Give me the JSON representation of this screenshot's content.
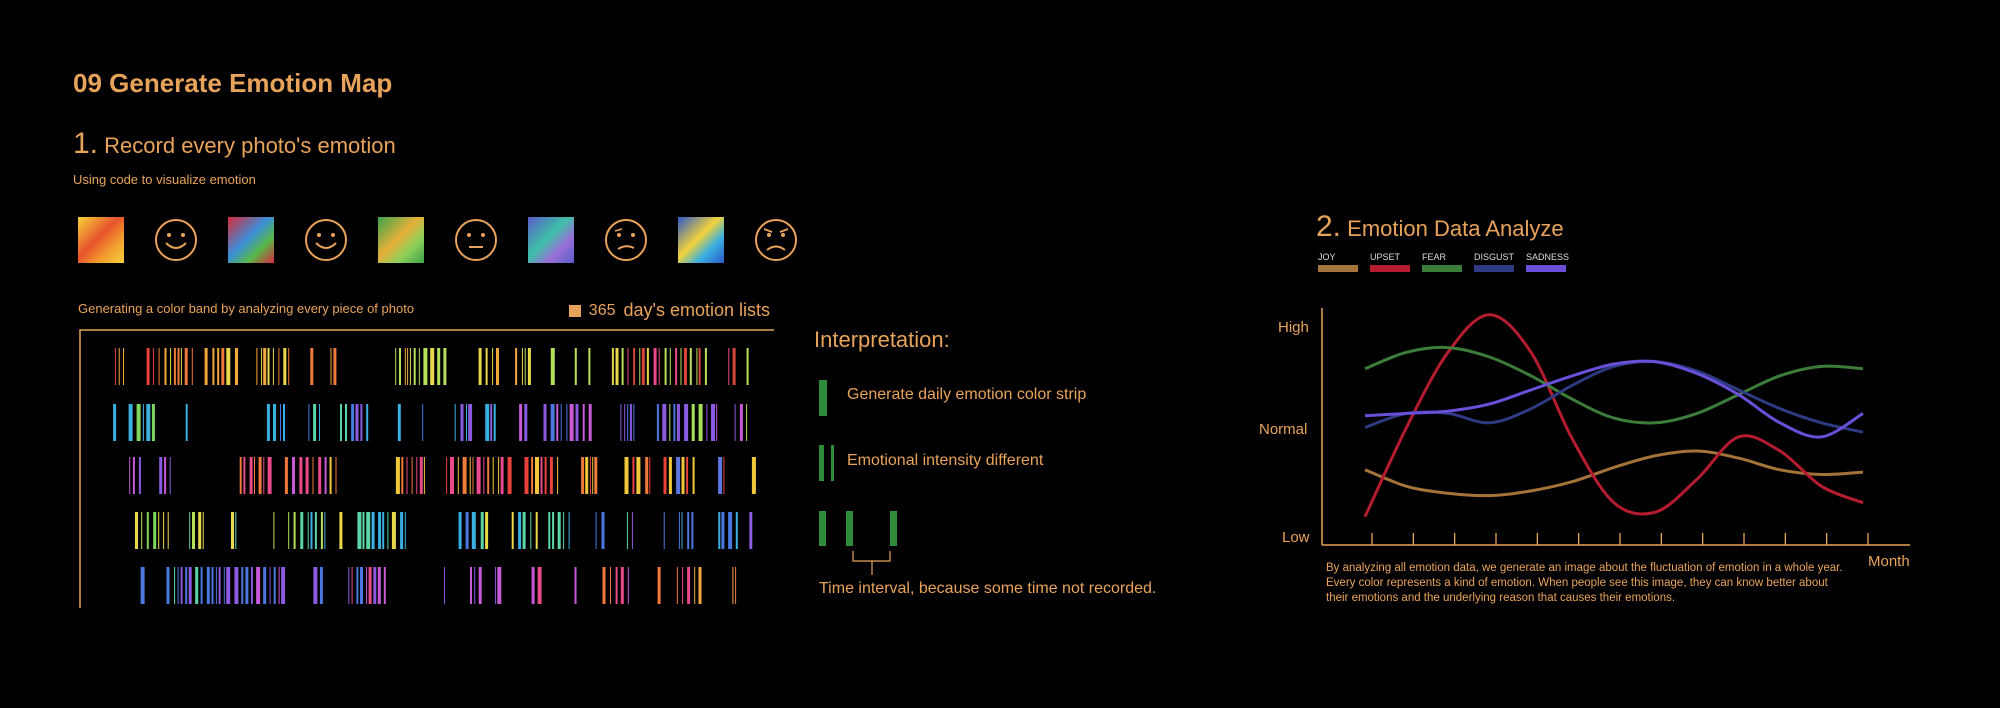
{
  "title": "09 Generate Emotion Map",
  "section1": {
    "number": "1.",
    "heading": "Record every photo's emotion",
    "subtitle": "Using code to visualize emotion",
    "icons": [
      {
        "kind": "photo",
        "name": "photo-joy",
        "colors": [
          "#f7d23a",
          "#e8532b",
          "#f29a2e"
        ]
      },
      {
        "kind": "face",
        "name": "smile-face-icon",
        "mood": "smile"
      },
      {
        "kind": "photo",
        "name": "photo-upset",
        "colors": [
          "#d9283c",
          "#3a8fd8",
          "#57b84b"
        ]
      },
      {
        "kind": "face",
        "name": "smile-face-icon",
        "mood": "smile"
      },
      {
        "kind": "photo",
        "name": "photo-fear",
        "colors": [
          "#3aa24a",
          "#e6b03a",
          "#8fcf5a"
        ]
      },
      {
        "kind": "face",
        "name": "neutral-face-icon",
        "mood": "neutral"
      },
      {
        "kind": "photo",
        "name": "photo-disgust",
        "colors": [
          "#5a5cc8",
          "#3fc0a8",
          "#9a6fd8"
        ]
      },
      {
        "kind": "face",
        "name": "worried-face-icon",
        "mood": "worried"
      },
      {
        "kind": "photo",
        "name": "photo-sadness",
        "colors": [
          "#2a58c8",
          "#f2d23a",
          "#3ab0e0"
        ]
      },
      {
        "kind": "face",
        "name": "angry-face-icon",
        "mood": "angry"
      }
    ],
    "band_caption": "Generating a color band by analyzing every piece of photo",
    "days_count": "365",
    "days_label": "day's emotion lists"
  },
  "interpretation": {
    "title": "Interpretation:",
    "items": [
      "Generate daily emotion color strip",
      "Emotional intensity different",
      "Time interval, because some time not recorded."
    ]
  },
  "section2": {
    "number": "2.",
    "heading": "Emotion Data Analyze",
    "description": "By analyzing all emotion data, we generate an image about the fluctuation of emotion in a whole year. Every color represents  a kind of emotion. When people see this image, they can know better about their emotions and the underlying reason that causes their emotions."
  },
  "chart_data": {
    "type": "line",
    "title": "",
    "xlabel": "Month",
    "ylabel": "",
    "y_tick_labels": [
      "Low",
      "Normal",
      "High"
    ],
    "ylim": [
      0,
      100
    ],
    "x_ticks": 12,
    "x": [
      0,
      1,
      2,
      3,
      4,
      5,
      6,
      7,
      8,
      9,
      10,
      11,
      12
    ],
    "series": [
      {
        "name": "JOY",
        "color": "#a3733a",
        "values": [
          32,
          25,
          22,
          21,
          23,
          27,
          33,
          38,
          40,
          37,
          32,
          30,
          31
        ]
      },
      {
        "name": "UPSET",
        "color": "#b51c30",
        "values": [
          12,
          50,
          82,
          98,
          82,
          45,
          18,
          14,
          28,
          46,
          40,
          25,
          18
        ]
      },
      {
        "name": "FEAR",
        "color": "#3d7d3a",
        "values": [
          75,
          82,
          84,
          80,
          72,
          62,
          54,
          52,
          56,
          64,
          72,
          76,
          75
        ]
      },
      {
        "name": "DISGUST",
        "color": "#2e3a82",
        "values": [
          50,
          56,
          56,
          52,
          58,
          68,
          76,
          78,
          74,
          66,
          58,
          52,
          48
        ]
      },
      {
        "name": "SADNESS",
        "color": "#6a4fd8",
        "values": [
          55,
          56,
          57,
          60,
          66,
          72,
          77,
          78,
          73,
          64,
          52,
          46,
          56
        ]
      }
    ],
    "legend_position": "top-left"
  }
}
